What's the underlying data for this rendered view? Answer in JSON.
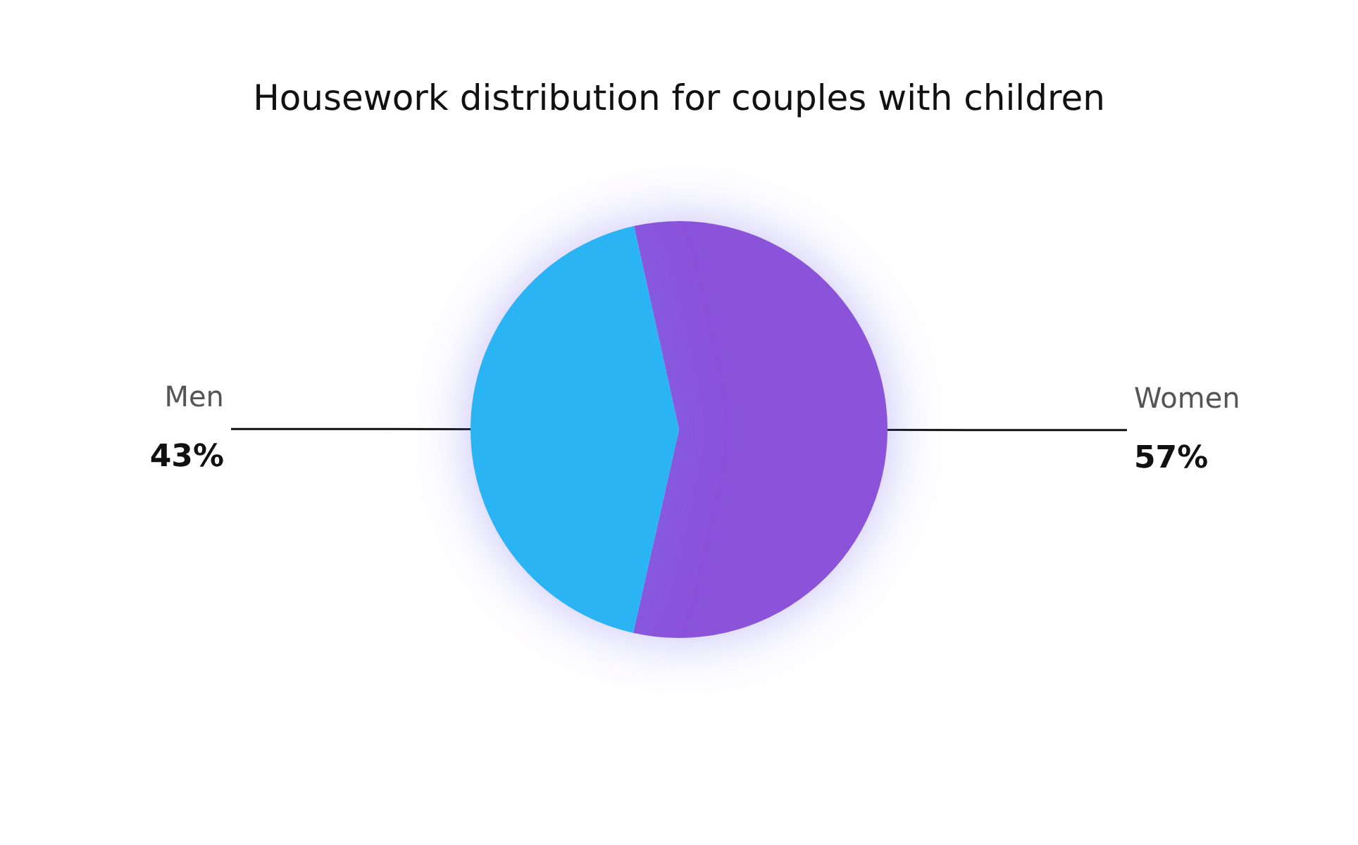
{
  "chart_data": {
    "type": "pie",
    "title": "Housework distribution for couples with children",
    "categories": [
      "Women",
      "Men"
    ],
    "values": [
      57,
      43
    ],
    "value_labels": [
      "57%",
      "43%"
    ],
    "colors": [
      "#8a52da",
      "#2bb4f4"
    ],
    "legend": false
  }
}
